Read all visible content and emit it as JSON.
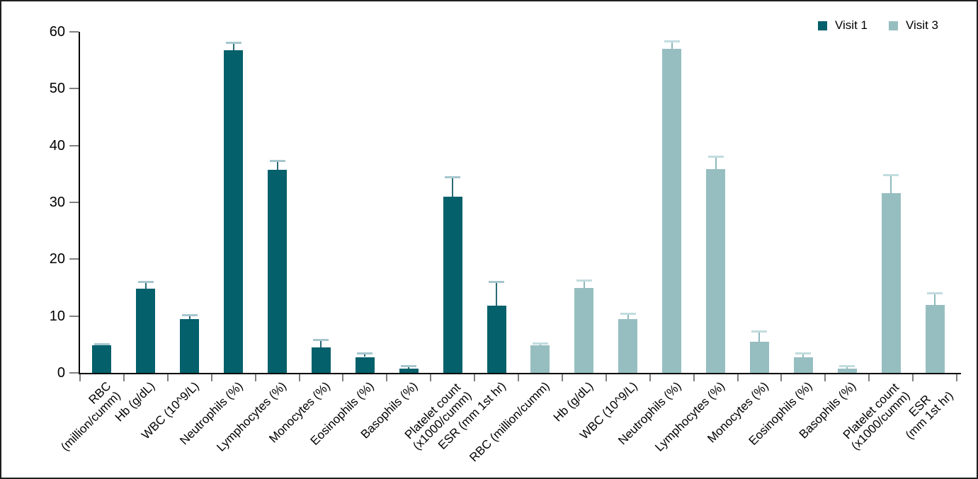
{
  "chart_data": {
    "type": "bar",
    "title": "",
    "xlabel": "",
    "ylabel": "",
    "ylim": [
      0,
      60
    ],
    "yticks": [
      0,
      10,
      20,
      30,
      40,
      50,
      60
    ],
    "grid": "off",
    "legend_position": "top-right",
    "x_label_rotation_deg": 45,
    "group_layout": "sequential: all Visit 1 bars first, then all Visit 3 bars",
    "categories": [
      "RBC (million/cumm)",
      "Hb (g/dL)",
      "WBC (10^9/L)",
      "Neutrophils (%)",
      "Lymphocytes (%)",
      "Monocytes (%)",
      "Eosinophils (%)",
      "Basophils (%)",
      "Platelet count (x1000/cumm)",
      "ESR (mm 1st hr)"
    ],
    "tick_labels": [
      "RBC (million/cumm)",
      "Hb (g/dL)",
      "WBC (10^9/L)",
      "Neutrophils (%)",
      "Lymphocytes (%)",
      "Monocytes (%)",
      "Eosinophils (%)",
      "Basophils (%)",
      "Platelet count\n(x1000/cumm)",
      "ESR (mm 1st hr)",
      "RBC (million/cumm)",
      "Hb (g/dL)",
      "WBC (10^9/L)",
      "Neutrophils (%)",
      "Lymphocytes (%)",
      "Monocytes (%)",
      "Eosinophils (%)",
      "Basophils (%)",
      "Platelet count\n(x1000/cumm)",
      "ESR\n(mm 1st hr)"
    ],
    "series": [
      {
        "name": "Visit 1",
        "color": "#04606b",
        "error_line_color": "#2a6a75",
        "error_cap_color": "#a6c6ce",
        "values": [
          4.8,
          14.8,
          9.5,
          56.8,
          35.7,
          4.5,
          2.8,
          0.7,
          31.0,
          11.8
        ],
        "errors_upper": [
          0.3,
          1.2,
          0.7,
          1.3,
          1.6,
          1.3,
          0.7,
          0.6,
          3.5,
          4.3
        ]
      },
      {
        "name": "Visit 3",
        "color": "#96bec0",
        "error_line_color": "#8fb9bd",
        "error_cap_color": "#c2dcde",
        "values": [
          4.9,
          14.9,
          9.5,
          57.0,
          35.9,
          5.5,
          2.7,
          0.7,
          31.6,
          12.0
        ],
        "errors_upper": [
          0.3,
          1.4,
          0.9,
          1.4,
          2.2,
          1.8,
          0.8,
          0.6,
          3.3,
          2.1
        ]
      }
    ]
  }
}
